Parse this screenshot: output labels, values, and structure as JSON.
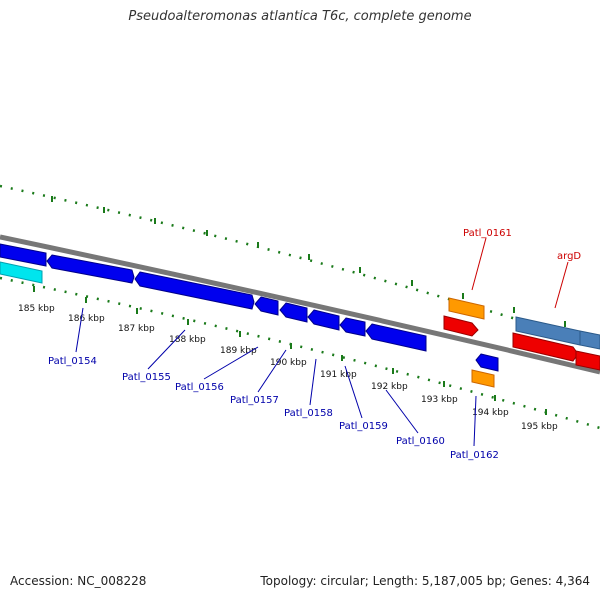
{
  "title": "Pseudoalteromonas atlantica T6c, complete genome",
  "footer": {
    "accession": "Accession: NC_008228",
    "summary": "Topology: circular; Length: 5,187,005 bp; Genes: 4,364"
  },
  "colors": {
    "forward_cds": "#1f4e8c",
    "reverse_cds": "#0000ee",
    "rna": "#ff9900",
    "highlight_red": "#ee0000",
    "cyan": "#00ddee",
    "backbone": "#777777",
    "tick": "#1a7a1a",
    "label_blue": "#0000aa",
    "label_red": "#cc0000"
  },
  "ticks": [
    "185 kbp",
    "186 kbp",
    "187 kbp",
    "188 kbp",
    "189 kbp",
    "190 kbp",
    "191 kbp",
    "192 kbp",
    "193 kbp",
    "194 kbp",
    "195 kbp"
  ],
  "genes_lower": [
    "Patl_0154",
    "Patl_0155",
    "Patl_0156",
    "Patl_0157",
    "Patl_0158",
    "Patl_0159",
    "Patl_0160",
    "Patl_0162"
  ],
  "genes_upper": [
    "Patl_0161",
    "argD"
  ]
}
